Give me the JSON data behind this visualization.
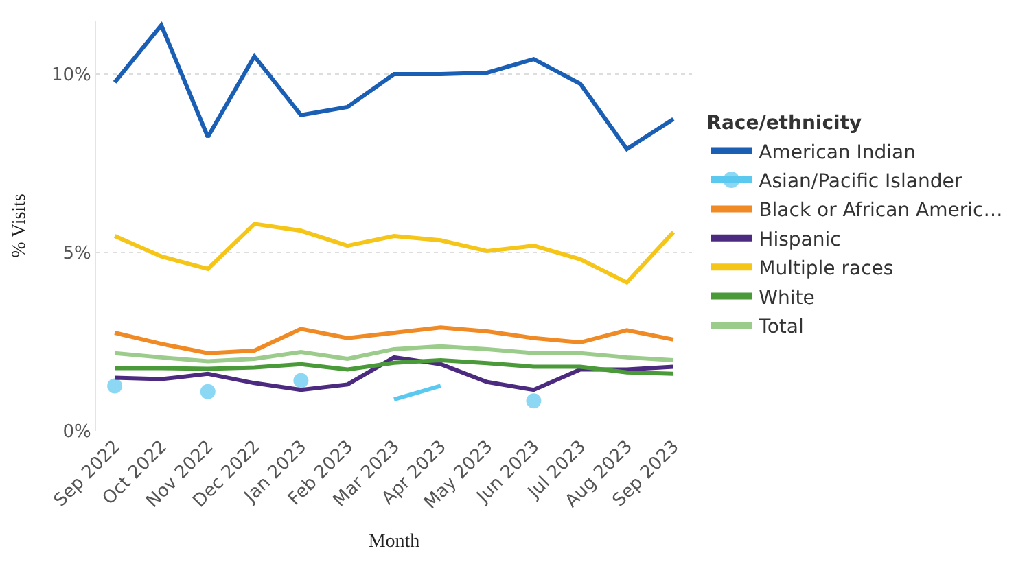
{
  "chart_data": {
    "type": "line",
    "xlabel": "Month",
    "ylabel": "% Visits",
    "legend_title": "Race/ethnicity",
    "legend": "right",
    "grid": "y",
    "categories": [
      "Sep 2022",
      "Oct 2022",
      "Nov 2022",
      "Dec 2022",
      "Jan 2023",
      "Feb 2023",
      "Mar 2023",
      "Apr 2023",
      "May 2023",
      "Jun 2023",
      "Jul 2023",
      "Aug 2023",
      "Sep 2023"
    ],
    "ylim": [
      0,
      11.5
    ],
    "yticks": [
      {
        "value": 0,
        "label": "0%"
      },
      {
        "value": 5,
        "label": "5%"
      },
      {
        "value": 10,
        "label": "10%"
      }
    ],
    "series": [
      {
        "name": "American Indian",
        "color": "#1a5fb4",
        "values": [
          9.77,
          11.37,
          8.24,
          10.5,
          8.85,
          9.08,
          10.0,
          10.0,
          10.04,
          10.42,
          9.73,
          7.9,
          8.74
        ]
      },
      {
        "name": "Asian/Pacific Islander",
        "color": "#5bc8f0",
        "values": [
          1.26,
          null,
          1.1,
          null,
          1.41,
          null,
          0.88,
          1.26,
          null,
          0.84,
          null,
          null,
          null
        ]
      },
      {
        "name": "Black or African Americ…",
        "color": "#f08a24",
        "values": [
          2.75,
          2.44,
          2.18,
          2.25,
          2.86,
          2.6,
          2.75,
          2.9,
          2.79,
          2.6,
          2.48,
          2.82,
          2.56
        ]
      },
      {
        "name": "Hispanic",
        "color": "#4b2a7f",
        "values": [
          1.49,
          1.45,
          1.6,
          1.34,
          1.15,
          1.3,
          2.06,
          1.87,
          1.37,
          1.15,
          1.72,
          1.72,
          1.8
        ]
      },
      {
        "name": "Multiple races",
        "color": "#f5c518",
        "values": [
          5.46,
          4.89,
          4.54,
          5.8,
          5.61,
          5.19,
          5.46,
          5.34,
          5.04,
          5.19,
          4.81,
          4.16,
          5.57
        ]
      },
      {
        "name": "White",
        "color": "#4a9a3a",
        "values": [
          1.76,
          1.76,
          1.74,
          1.78,
          1.87,
          1.72,
          1.91,
          1.98,
          1.9,
          1.8,
          1.8,
          1.64,
          1.6
        ]
      },
      {
        "name": "Total",
        "color": "#9ccc8c",
        "values": [
          2.18,
          2.06,
          1.95,
          2.02,
          2.21,
          2.02,
          2.29,
          2.37,
          2.29,
          2.18,
          2.18,
          2.06,
          1.98
        ]
      }
    ]
  }
}
